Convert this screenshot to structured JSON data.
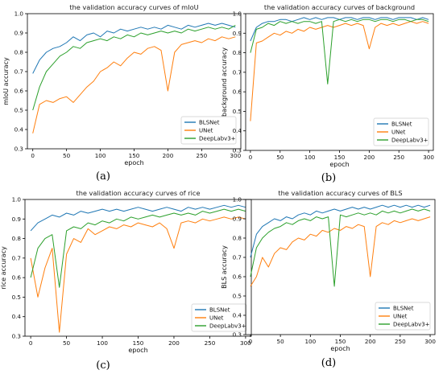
{
  "chart_data": [
    {
      "type": "line",
      "title": "the validation accuracy curves of mIoU",
      "xlabel": "epoch",
      "ylabel": "mIoU accuracy",
      "caption": "(a)",
      "xlim": [
        -8,
        308
      ],
      "ylim": [
        0.3,
        1.0
      ],
      "xticks": [
        0,
        50,
        100,
        150,
        200,
        250,
        300
      ],
      "yticks": [
        0.3,
        0.4,
        0.5,
        0.6,
        0.7,
        0.8,
        0.9,
        1.0
      ],
      "legend_position": "lower-right",
      "series": [
        {
          "name": "BLSNet",
          "color": "#1f77b4",
          "x": [
            0,
            10,
            20,
            30,
            40,
            50,
            60,
            70,
            80,
            90,
            100,
            110,
            120,
            130,
            140,
            150,
            160,
            170,
            180,
            190,
            200,
            210,
            220,
            230,
            240,
            250,
            260,
            270,
            280,
            290,
            300
          ],
          "y": [
            0.69,
            0.76,
            0.8,
            0.82,
            0.83,
            0.85,
            0.88,
            0.86,
            0.89,
            0.9,
            0.88,
            0.91,
            0.9,
            0.92,
            0.91,
            0.92,
            0.93,
            0.92,
            0.93,
            0.92,
            0.94,
            0.93,
            0.92,
            0.94,
            0.93,
            0.94,
            0.95,
            0.94,
            0.95,
            0.94,
            0.93
          ]
        },
        {
          "name": "UNet",
          "color": "#ff7f0e",
          "x": [
            0,
            10,
            20,
            30,
            40,
            50,
            60,
            70,
            80,
            90,
            100,
            110,
            120,
            130,
            140,
            150,
            160,
            170,
            180,
            190,
            200,
            210,
            220,
            230,
            240,
            250,
            260,
            270,
            280,
            290,
            300
          ],
          "y": [
            0.38,
            0.53,
            0.55,
            0.54,
            0.56,
            0.57,
            0.54,
            0.58,
            0.62,
            0.65,
            0.7,
            0.72,
            0.75,
            0.73,
            0.77,
            0.8,
            0.79,
            0.82,
            0.83,
            0.81,
            0.6,
            0.8,
            0.84,
            0.85,
            0.86,
            0.85,
            0.87,
            0.86,
            0.88,
            0.87,
            0.88
          ]
        },
        {
          "name": "DeepLabv3+",
          "color": "#2ca02c",
          "x": [
            0,
            10,
            20,
            30,
            40,
            50,
            60,
            70,
            80,
            90,
            100,
            110,
            120,
            130,
            140,
            150,
            160,
            170,
            180,
            190,
            200,
            210,
            220,
            230,
            240,
            250,
            260,
            270,
            280,
            290,
            300
          ],
          "y": [
            0.5,
            0.62,
            0.7,
            0.74,
            0.78,
            0.8,
            0.83,
            0.82,
            0.85,
            0.86,
            0.87,
            0.86,
            0.88,
            0.87,
            0.89,
            0.88,
            0.9,
            0.89,
            0.9,
            0.91,
            0.9,
            0.91,
            0.9,
            0.92,
            0.91,
            0.92,
            0.93,
            0.92,
            0.93,
            0.92,
            0.94
          ]
        }
      ]
    },
    {
      "type": "line",
      "title": "the validation accuracy curves of background",
      "xlabel": "epoch",
      "ylabel": "background accuracy",
      "caption": "(b)",
      "xlim": [
        -8,
        308
      ],
      "ylim": [
        0.3,
        1.0
      ],
      "xticks": [
        0,
        50,
        100,
        150,
        200,
        250,
        300
      ],
      "yticks": [
        0.3,
        0.4,
        0.5,
        0.6,
        0.7,
        0.8,
        0.9,
        1.0
      ],
      "legend_position": "lower-right",
      "series": [
        {
          "name": "BLSNet",
          "color": "#1f77b4",
          "x": [
            0,
            10,
            20,
            30,
            40,
            50,
            60,
            70,
            80,
            90,
            100,
            110,
            120,
            130,
            140,
            150,
            160,
            170,
            180,
            190,
            200,
            210,
            220,
            230,
            240,
            250,
            260,
            270,
            280,
            290,
            300
          ],
          "y": [
            0.86,
            0.93,
            0.95,
            0.96,
            0.96,
            0.97,
            0.97,
            0.96,
            0.97,
            0.98,
            0.97,
            0.98,
            0.97,
            0.98,
            0.98,
            0.97,
            0.98,
            0.98,
            0.97,
            0.98,
            0.98,
            0.97,
            0.98,
            0.98,
            0.97,
            0.98,
            0.98,
            0.98,
            0.97,
            0.98,
            0.97
          ]
        },
        {
          "name": "UNet",
          "color": "#ff7f0e",
          "x": [
            0,
            10,
            20,
            30,
            40,
            50,
            60,
            70,
            80,
            90,
            100,
            110,
            120,
            130,
            140,
            150,
            160,
            170,
            180,
            190,
            200,
            210,
            220,
            230,
            240,
            250,
            260,
            270,
            280,
            290,
            300
          ],
          "y": [
            0.45,
            0.85,
            0.86,
            0.88,
            0.9,
            0.89,
            0.91,
            0.9,
            0.92,
            0.91,
            0.93,
            0.92,
            0.93,
            0.94,
            0.93,
            0.94,
            0.95,
            0.94,
            0.95,
            0.94,
            0.82,
            0.93,
            0.95,
            0.94,
            0.95,
            0.94,
            0.95,
            0.96,
            0.95,
            0.96,
            0.95
          ]
        },
        {
          "name": "DeepLabv3+",
          "color": "#2ca02c",
          "x": [
            0,
            10,
            20,
            30,
            40,
            50,
            60,
            70,
            80,
            90,
            100,
            110,
            120,
            130,
            140,
            150,
            160,
            170,
            180,
            190,
            200,
            210,
            220,
            230,
            240,
            250,
            260,
            270,
            280,
            290,
            300
          ],
          "y": [
            0.8,
            0.92,
            0.93,
            0.95,
            0.94,
            0.96,
            0.95,
            0.96,
            0.95,
            0.96,
            0.96,
            0.95,
            0.96,
            0.64,
            0.96,
            0.97,
            0.96,
            0.97,
            0.96,
            0.97,
            0.97,
            0.96,
            0.97,
            0.97,
            0.96,
            0.97,
            0.97,
            0.96,
            0.97,
            0.97,
            0.96
          ]
        }
      ]
    },
    {
      "type": "line",
      "title": "the validation accuracy curves of rice",
      "xlabel": "epoch",
      "ylabel": "rice accuracy",
      "caption": "(c)",
      "xlim": [
        -8,
        308
      ],
      "ylim": [
        0.3,
        1.0
      ],
      "xticks": [
        0,
        50,
        100,
        150,
        200,
        250,
        300
      ],
      "yticks": [
        0.3,
        0.4,
        0.5,
        0.6,
        0.7,
        0.8,
        0.9,
        1.0
      ],
      "legend_position": "lower-right",
      "series": [
        {
          "name": "BLSNet",
          "color": "#1f77b4",
          "x": [
            0,
            10,
            20,
            30,
            40,
            50,
            60,
            70,
            80,
            90,
            100,
            110,
            120,
            130,
            140,
            150,
            160,
            170,
            180,
            190,
            200,
            210,
            220,
            230,
            240,
            250,
            260,
            270,
            280,
            290,
            300
          ],
          "y": [
            0.84,
            0.88,
            0.9,
            0.92,
            0.91,
            0.93,
            0.92,
            0.94,
            0.93,
            0.94,
            0.95,
            0.94,
            0.95,
            0.94,
            0.95,
            0.96,
            0.95,
            0.94,
            0.95,
            0.96,
            0.95,
            0.94,
            0.96,
            0.95,
            0.96,
            0.95,
            0.96,
            0.97,
            0.96,
            0.97,
            0.96
          ]
        },
        {
          "name": "UNet",
          "color": "#ff7f0e",
          "x": [
            0,
            10,
            20,
            30,
            40,
            50,
            60,
            70,
            80,
            90,
            100,
            110,
            120,
            130,
            140,
            150,
            160,
            170,
            180,
            190,
            200,
            210,
            220,
            230,
            240,
            250,
            260,
            270,
            280,
            290,
            300
          ],
          "y": [
            0.7,
            0.5,
            0.65,
            0.75,
            0.32,
            0.72,
            0.8,
            0.78,
            0.85,
            0.82,
            0.84,
            0.86,
            0.85,
            0.87,
            0.86,
            0.88,
            0.87,
            0.86,
            0.88,
            0.85,
            0.75,
            0.88,
            0.89,
            0.88,
            0.9,
            0.89,
            0.9,
            0.91,
            0.9,
            0.91,
            0.9
          ]
        },
        {
          "name": "DeepLabv3+",
          "color": "#2ca02c",
          "x": [
            0,
            10,
            20,
            30,
            40,
            50,
            60,
            70,
            80,
            90,
            100,
            110,
            120,
            130,
            140,
            150,
            160,
            170,
            180,
            190,
            200,
            210,
            220,
            230,
            240,
            250,
            260,
            270,
            280,
            290,
            300
          ],
          "y": [
            0.6,
            0.75,
            0.8,
            0.82,
            0.55,
            0.84,
            0.86,
            0.85,
            0.88,
            0.87,
            0.89,
            0.88,
            0.9,
            0.89,
            0.91,
            0.9,
            0.91,
            0.92,
            0.91,
            0.92,
            0.93,
            0.92,
            0.93,
            0.92,
            0.94,
            0.93,
            0.94,
            0.95,
            0.94,
            0.95,
            0.94
          ]
        }
      ]
    },
    {
      "type": "line",
      "title": "the validation accuracy curves of BLS",
      "xlabel": "epoch",
      "ylabel": "BLS accuracy",
      "caption": "(d)",
      "xlim": [
        -8,
        308
      ],
      "ylim": [
        0.3,
        1.0
      ],
      "xticks": [
        0,
        50,
        100,
        150,
        200,
        250,
        300
      ],
      "yticks": [
        0.3,
        0.4,
        0.5,
        0.6,
        0.7,
        0.8,
        0.9,
        1.0
      ],
      "legend_position": "lower-right",
      "series": [
        {
          "name": "BLSNet",
          "color": "#1f77b4",
          "x": [
            0,
            10,
            20,
            30,
            40,
            50,
            60,
            70,
            80,
            90,
            100,
            110,
            120,
            130,
            140,
            150,
            160,
            170,
            180,
            190,
            200,
            210,
            220,
            230,
            240,
            250,
            260,
            270,
            280,
            290,
            300
          ],
          "y": [
            0.7,
            0.82,
            0.86,
            0.88,
            0.9,
            0.89,
            0.91,
            0.9,
            0.92,
            0.93,
            0.92,
            0.94,
            0.93,
            0.94,
            0.95,
            0.94,
            0.95,
            0.96,
            0.95,
            0.96,
            0.95,
            0.96,
            0.97,
            0.96,
            0.97,
            0.96,
            0.97,
            0.96,
            0.97,
            0.96,
            0.97
          ]
        },
        {
          "name": "UNet",
          "color": "#ff7f0e",
          "x": [
            0,
            10,
            20,
            30,
            40,
            50,
            60,
            70,
            80,
            90,
            100,
            110,
            120,
            130,
            140,
            150,
            160,
            170,
            180,
            190,
            200,
            210,
            220,
            230,
            240,
            250,
            260,
            270,
            280,
            290,
            300
          ],
          "y": [
            0.55,
            0.6,
            0.7,
            0.65,
            0.72,
            0.75,
            0.74,
            0.78,
            0.8,
            0.79,
            0.82,
            0.81,
            0.84,
            0.83,
            0.85,
            0.84,
            0.86,
            0.85,
            0.87,
            0.86,
            0.6,
            0.86,
            0.88,
            0.87,
            0.89,
            0.88,
            0.89,
            0.9,
            0.89,
            0.9,
            0.91
          ]
        },
        {
          "name": "DeepLabv3+",
          "color": "#2ca02c",
          "x": [
            0,
            10,
            20,
            30,
            40,
            50,
            60,
            70,
            80,
            90,
            100,
            110,
            120,
            130,
            140,
            150,
            160,
            170,
            180,
            190,
            200,
            210,
            220,
            230,
            240,
            250,
            260,
            270,
            280,
            290,
            300
          ],
          "y": [
            0.6,
            0.75,
            0.8,
            0.83,
            0.85,
            0.86,
            0.88,
            0.87,
            0.89,
            0.9,
            0.89,
            0.91,
            0.9,
            0.91,
            0.55,
            0.92,
            0.91,
            0.92,
            0.93,
            0.92,
            0.93,
            0.92,
            0.94,
            0.93,
            0.94,
            0.93,
            0.94,
            0.95,
            0.94,
            0.95,
            0.94
          ]
        }
      ]
    }
  ]
}
